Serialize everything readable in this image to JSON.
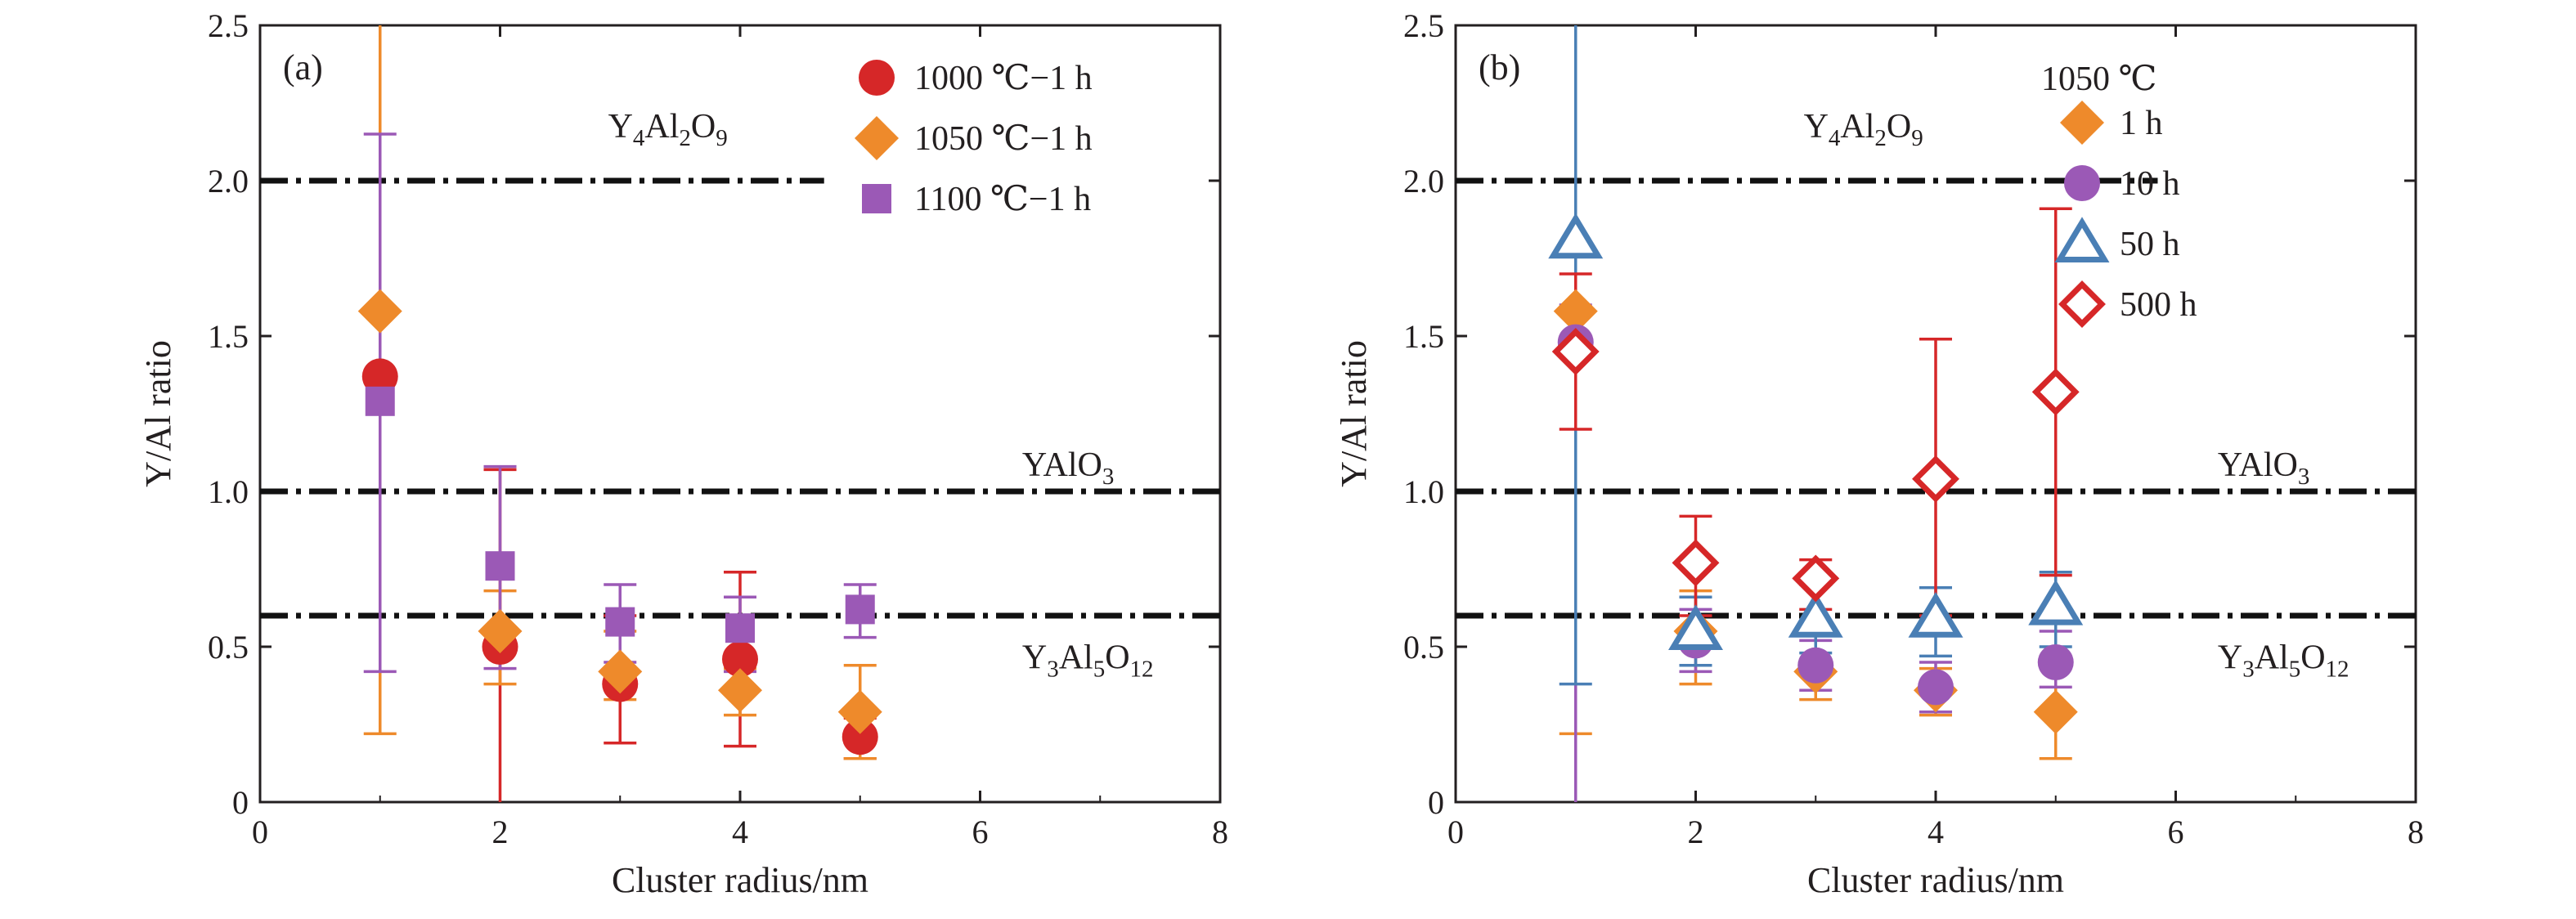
{
  "chart_data": [
    {
      "id": "a",
      "type": "scatter",
      "panel_label": "(a)",
      "xlabel": "Cluster radius/nm",
      "ylabel": "Y/Al ratio",
      "xlim": [
        0,
        8
      ],
      "ylim": [
        0,
        2.5
      ],
      "x_ticks": [
        "0",
        "2",
        "4",
        "6",
        "8"
      ],
      "y_ticks": [
        "0",
        "0.5",
        "1.0",
        "1.5",
        "2.0",
        "2.5"
      ],
      "grid": false,
      "legend_position": "top-right",
      "legend_title": "",
      "reference_lines": [
        {
          "y": 2.0,
          "xmax": 4.7,
          "label_parts": [
            [
              "Y",
              ""
            ],
            [
              "4",
              "sub"
            ],
            [
              "Al",
              ""
            ],
            [
              "2",
              "sub"
            ],
            [
              "O",
              ""
            ],
            [
              "9",
              "sub"
            ]
          ],
          "label_x": 2.9,
          "label_y": 2.14
        },
        {
          "y": 1.0,
          "xmax": 8,
          "label_parts": [
            [
              "YAlO",
              ""
            ],
            [
              "3",
              "sub"
            ]
          ],
          "label_x": 6.35,
          "label_y": 1.05
        },
        {
          "y": 0.6,
          "xmax": 8,
          "label_parts": [
            [
              "Y",
              ""
            ],
            [
              "3",
              "sub"
            ],
            [
              "Al",
              ""
            ],
            [
              "5",
              "sub"
            ],
            [
              "O",
              ""
            ],
            [
              "12",
              "sub"
            ]
          ],
          "label_x": 6.35,
          "label_y": 0.43
        }
      ],
      "series": [
        {
          "name": "1000 ℃−1 h",
          "marker": "circle",
          "filled": true,
          "color": "#d62728",
          "x": [
            1,
            2,
            3,
            4,
            5
          ],
          "y": [
            1.37,
            0.5,
            0.38,
            0.46,
            0.21
          ],
          "err_low": [
            null,
            0,
            0.19,
            0.18,
            0.14
          ],
          "err_high": [
            null,
            1.07,
            0.6,
            0.74,
            0.27
          ]
        },
        {
          "name": "1050 ℃−1 h",
          "marker": "diamond",
          "filled": true,
          "color": "#ee8a2b",
          "x": [
            1,
            2,
            3,
            4,
            5
          ],
          "y": [
            1.58,
            0.55,
            0.42,
            0.36,
            0.29
          ],
          "err_low": [
            0.22,
            0.38,
            0.33,
            0.28,
            0.14
          ],
          "err_high": [
            2.5,
            0.68,
            0.55,
            0.43,
            0.44
          ]
        },
        {
          "name": "1100 ℃−1 h",
          "marker": "square",
          "filled": true,
          "color": "#9b59b6",
          "x": [
            1,
            2,
            3,
            4,
            5
          ],
          "y": [
            1.29,
            0.76,
            0.58,
            0.56,
            0.62
          ],
          "err_low": [
            0.42,
            0.43,
            0.45,
            0.42,
            0.53
          ],
          "err_high": [
            2.15,
            1.08,
            0.7,
            0.66,
            0.7
          ]
        }
      ]
    },
    {
      "id": "b",
      "type": "scatter",
      "panel_label": "(b)",
      "xlabel": "Cluster radius/nm",
      "ylabel": "Y/Al ratio",
      "xlim": [
        0,
        8
      ],
      "ylim": [
        0,
        2.5
      ],
      "x_ticks": [
        "0",
        "2",
        "4",
        "6",
        "8"
      ],
      "y_ticks": [
        "0",
        "0.5",
        "1.0",
        "1.5",
        "2.0",
        "2.5"
      ],
      "grid": false,
      "legend_position": "top-right",
      "legend_title": "1050 ℃",
      "reference_lines": [
        {
          "y": 2.0,
          "xmax": 5.85,
          "label_parts": [
            [
              "Y",
              ""
            ],
            [
              "4",
              "sub"
            ],
            [
              "Al",
              ""
            ],
            [
              "2",
              "sub"
            ],
            [
              "O",
              ""
            ],
            [
              "9",
              "sub"
            ]
          ],
          "label_x": 2.9,
          "label_y": 2.14
        },
        {
          "y": 1.0,
          "xmax": 8,
          "label_parts": [
            [
              "YAlO",
              ""
            ],
            [
              "3",
              "sub"
            ]
          ],
          "label_x": 6.35,
          "label_y": 1.05
        },
        {
          "y": 0.6,
          "xmax": 8,
          "label_parts": [
            [
              "Y",
              ""
            ],
            [
              "3",
              "sub"
            ],
            [
              "Al",
              ""
            ],
            [
              "5",
              "sub"
            ],
            [
              "O",
              ""
            ],
            [
              "12",
              "sub"
            ]
          ],
          "label_x": 6.35,
          "label_y": 0.43
        }
      ],
      "series": [
        {
          "name": "1 h",
          "marker": "diamond",
          "filled": true,
          "color": "#ee8a2b",
          "x": [
            1,
            2,
            3,
            4,
            5
          ],
          "y": [
            1.58,
            0.55,
            0.42,
            0.36,
            0.29
          ],
          "err_low": [
            0.22,
            0.38,
            0.33,
            0.28,
            0.14
          ],
          "err_high": [
            2.5,
            0.68,
            0.55,
            0.43,
            0.44
          ]
        },
        {
          "name": "10 h",
          "marker": "circle",
          "filled": true,
          "color": "#9b59b6",
          "x": [
            1,
            2,
            3,
            4,
            5
          ],
          "y": [
            1.48,
            0.52,
            0.44,
            0.37,
            0.45
          ],
          "err_low": [
            0,
            0.42,
            0.36,
            0.29,
            0.37
          ],
          "err_high": [
            1.6,
            0.62,
            0.52,
            0.45,
            0.55
          ]
        },
        {
          "name": "50 h",
          "marker": "triangle",
          "filled": false,
          "color": "#4a7fb5",
          "x": [
            1,
            2,
            3,
            4,
            5
          ],
          "y": [
            1.81,
            0.55,
            0.59,
            0.59,
            0.63
          ],
          "err_low": [
            0.38,
            0.44,
            0.48,
            0.47,
            0.5
          ],
          "err_high": [
            2.5,
            0.66,
            0.7,
            0.69,
            0.74
          ]
        },
        {
          "name": "500 h",
          "marker": "diamond",
          "filled": false,
          "color": "#d62728",
          "x": [
            1,
            2,
            3,
            4,
            5
          ],
          "y": [
            1.45,
            0.77,
            0.72,
            1.04,
            1.32
          ],
          "err_low": [
            1.2,
            0.6,
            0.62,
            0.6,
            0.73
          ],
          "err_high": [
            1.7,
            0.92,
            0.78,
            1.49,
            1.91
          ]
        }
      ]
    }
  ]
}
